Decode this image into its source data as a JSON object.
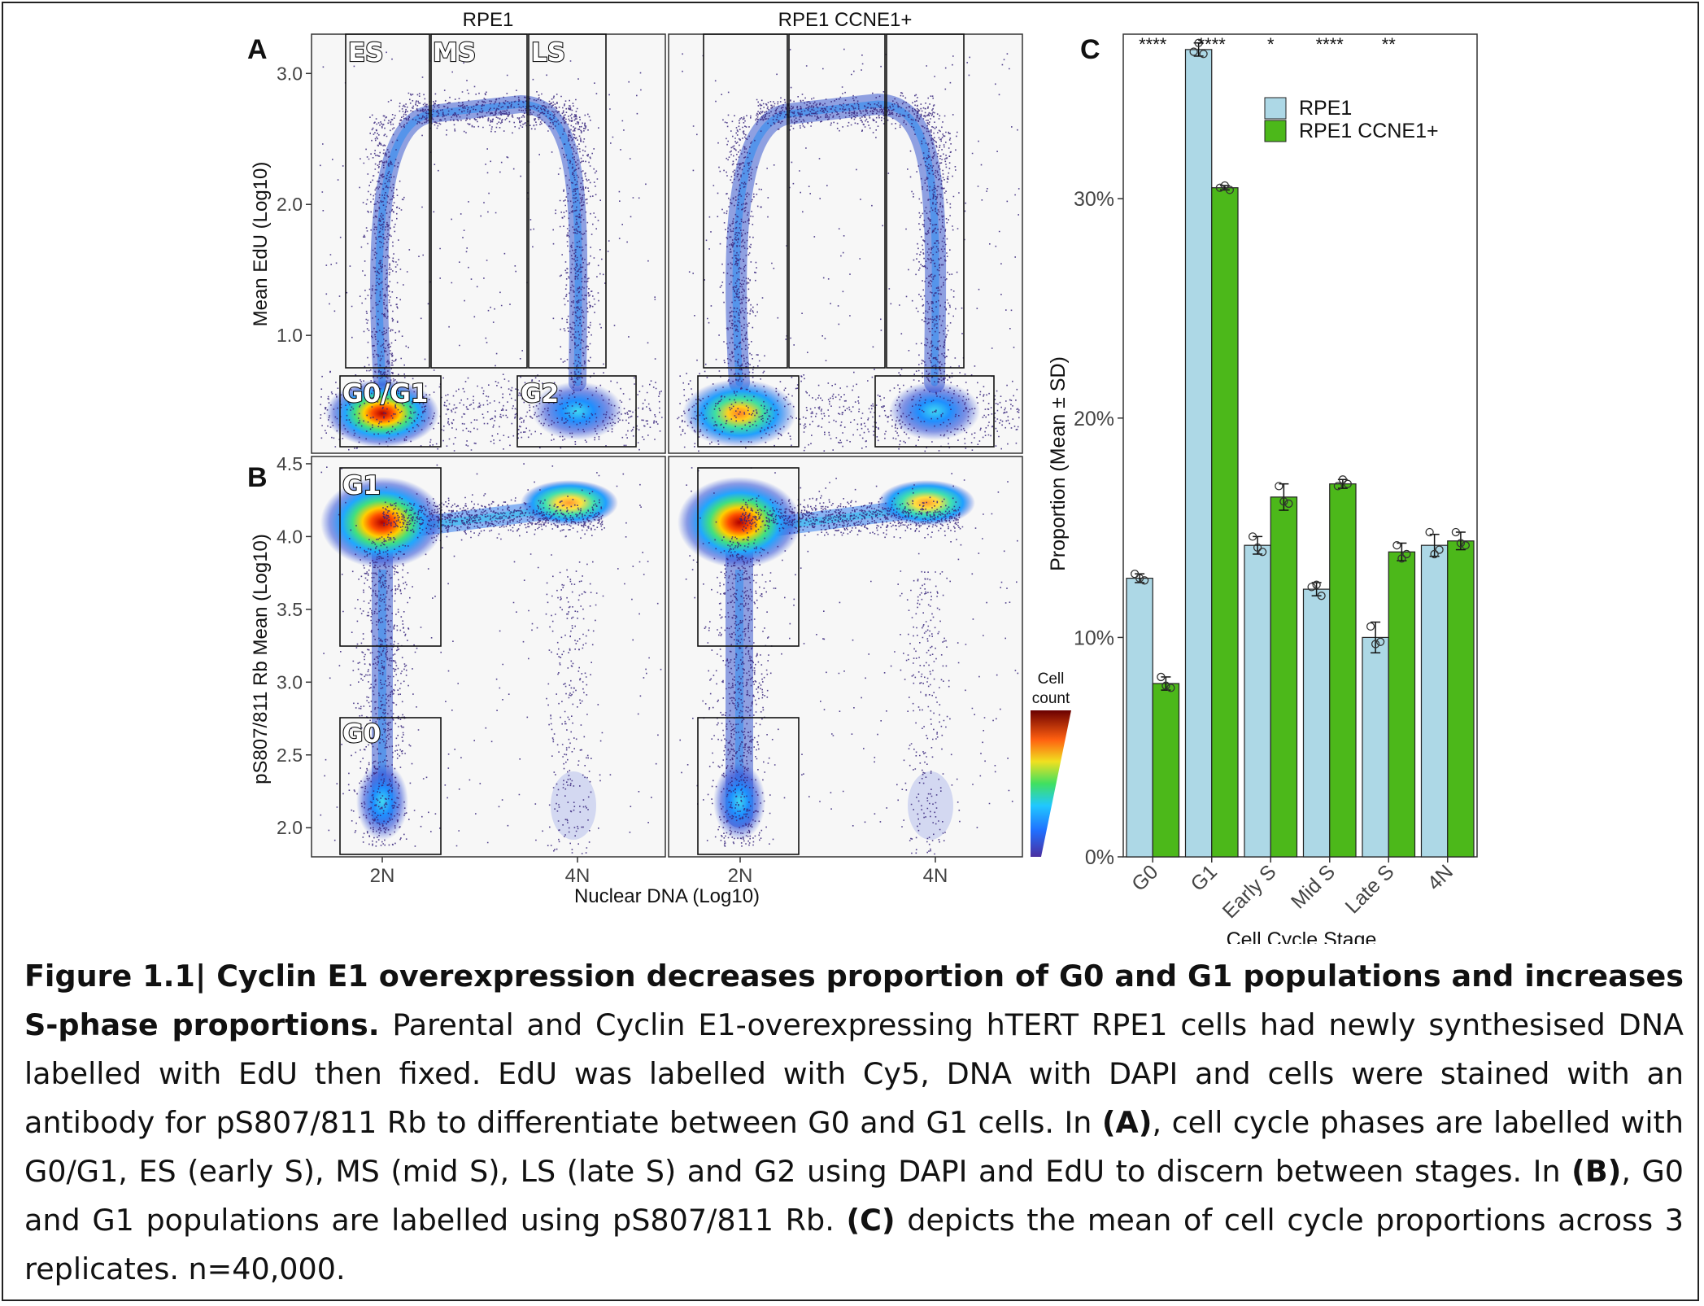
{
  "panels": {
    "A": {
      "label": "A",
      "ylabel": "Mean EdU (Log10)",
      "yticks": [
        "3.0",
        "2.0",
        "1.0"
      ],
      "ytick_values": [
        3.0,
        2.0,
        1.0
      ],
      "ylim": [
        0.1,
        3.3
      ],
      "facets": [
        "RPE1",
        "RPE1 CCNE1+"
      ],
      "gates": [
        {
          "name": "ES"
        },
        {
          "name": "MS"
        },
        {
          "name": "LS"
        },
        {
          "name": "G0/G1"
        },
        {
          "name": "G2"
        }
      ]
    },
    "B": {
      "label": "B",
      "ylabel": "pS807/811 Rb Mean (Log10)",
      "yticks": [
        "4.5",
        "4.0",
        "3.5",
        "3.0",
        "2.5",
        "2.0"
      ],
      "ytick_values": [
        4.5,
        4.0,
        3.5,
        3.0,
        2.5,
        2.0
      ],
      "ylim": [
        1.8,
        4.55
      ],
      "gates": [
        {
          "name": "G1"
        },
        {
          "name": "G0"
        }
      ]
    },
    "xaxis": {
      "label": "Nuclear DNA (Log10)",
      "ticks": [
        "2N",
        "4N"
      ]
    },
    "colorbar": {
      "title_line1": "Cell",
      "title_line2": "count"
    }
  },
  "chart_data": {
    "type": "bar",
    "panel_label": "C",
    "categories": [
      "G0",
      "G1",
      "Early S",
      "Mid S",
      "Late S",
      "4N"
    ],
    "series": [
      {
        "name": "RPE1",
        "color": "#add8e6",
        "values": [
          12.7,
          36.8,
          14.2,
          12.2,
          10.0,
          14.2
        ],
        "sd": [
          0.2,
          0.3,
          0.4,
          0.3,
          0.7,
          0.5
        ]
      },
      {
        "name": "RPE1 CCNE1+",
        "color": "#4cb81a",
        "values": [
          7.9,
          30.5,
          16.4,
          17.0,
          13.9,
          14.4
        ],
        "sd": [
          0.3,
          0.1,
          0.6,
          0.2,
          0.4,
          0.4
        ]
      }
    ],
    "replicates": {
      "RPE1": [
        [
          12.9,
          12.6,
          12.7
        ],
        [
          36.7,
          36.6,
          37.1
        ],
        [
          14.6,
          13.9,
          14.1
        ],
        [
          12.3,
          11.9,
          12.4
        ],
        [
          10.5,
          9.8,
          9.7
        ],
        [
          14.8,
          14.0,
          13.8
        ]
      ],
      "RPE1 CCNE1+": [
        [
          8.2,
          7.7,
          7.8
        ],
        [
          30.5,
          30.4,
          30.6
        ],
        [
          16.9,
          16.1,
          16.2
        ],
        [
          16.9,
          17.0,
          17.2
        ],
        [
          14.2,
          13.8,
          13.6
        ],
        [
          14.8,
          14.2,
          14.3
        ]
      ]
    },
    "significance": [
      "****",
      "****",
      "*",
      "****",
      "**",
      ""
    ],
    "xlabel": "Cell Cycle Stage",
    "ylabel": "Proportion (Mean ± SD)",
    "yticks": [
      "0%",
      "10%",
      "20%",
      "30%"
    ],
    "ylim": [
      0,
      37.5
    ],
    "legend_position": "top-right",
    "grid": false
  },
  "caption": {
    "title": "Figure 1.1| Cyclin E1 overexpression decreases proportion of G0 and G1 populations and increases S-phase proportions.",
    "body_1": " Parental and Cyclin E1-overexpressing hTERT RPE1 cells had newly synthesised DNA labelled with EdU then fixed. EdU was labelled with Cy5, DNA with DAPI and cells were stained with an antibody for pS807/811 Rb to differentiate between G0 and G1 cells. In ",
    "ref_a": "(A)",
    "body_2": ", cell cycle phases are labelled with G0/G1, ES (early S), MS (mid S), LS (late S) and G2 using DAPI and EdU to discern between stages. In ",
    "ref_b": "(B)",
    "body_3": ", G0 and G1 populations are labelled using pS807/811 Rb. ",
    "ref_c": "(C)",
    "body_4": " depicts the mean of cell cycle proportions across 3 replicates. n=40,000."
  }
}
